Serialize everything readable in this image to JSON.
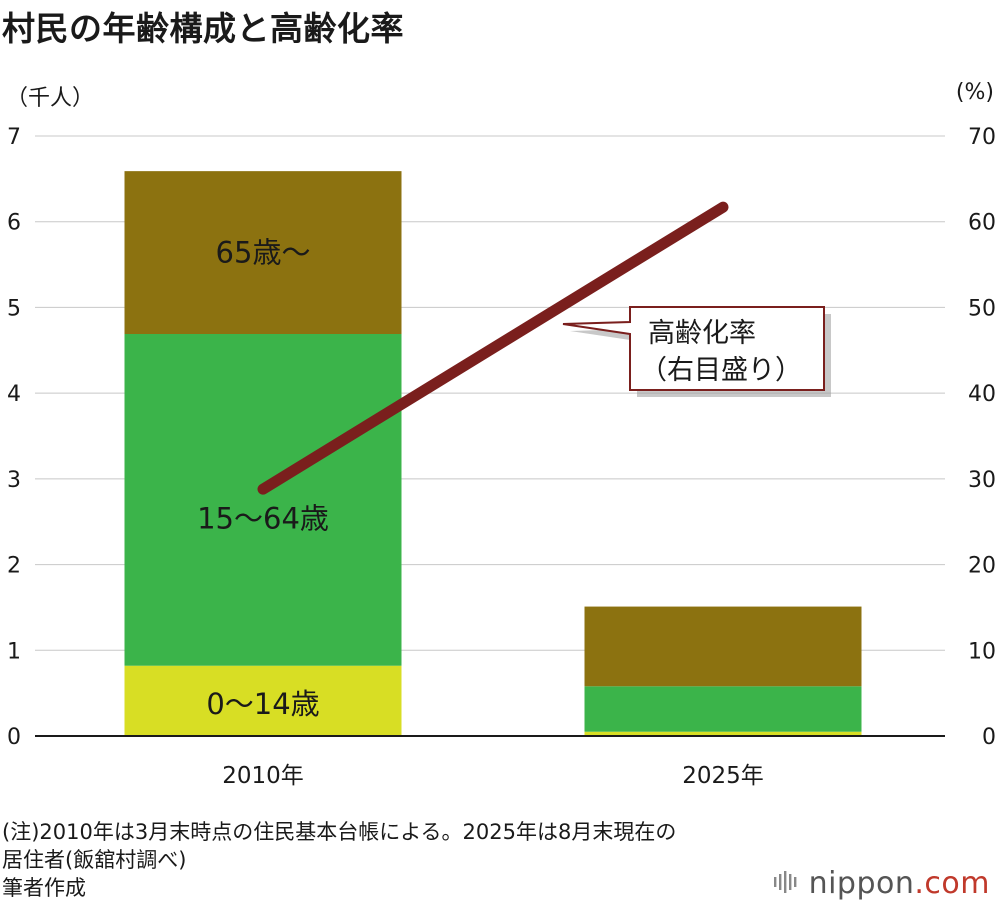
{
  "title": "村民の年齢構成と高齢化率",
  "left_unit": "（千人）",
  "right_unit": "(%)",
  "colors": {
    "age_0_14": "#d8de24",
    "age_15_64": "#3bb44a",
    "age_65_plus": "#8c7210",
    "line": "#7a1f1d",
    "grid": "#c8c8c8",
    "axis": "#1a1a1a"
  },
  "chart_data": {
    "type": "bar",
    "stacked": true,
    "categories": [
      "2010年",
      "2025年"
    ],
    "series": [
      {
        "name": "0〜14歳",
        "values": [
          0.82,
          0.05
        ]
      },
      {
        "name": "15〜64歳",
        "values": [
          3.87,
          0.53
        ]
      },
      {
        "name": "65歳〜",
        "values": [
          1.9,
          0.93
        ]
      }
    ],
    "line_series": {
      "name": "高齢化率",
      "axis": "right",
      "values": [
        28.8,
        61.7
      ]
    },
    "y_left": {
      "min": 0,
      "max": 7,
      "ticks": [
        "0",
        "1",
        "2",
        "3",
        "4",
        "5",
        "6",
        "7"
      ]
    },
    "y_right": {
      "min": 0,
      "max": 70,
      "ticks": [
        "0",
        "10",
        "20",
        "30",
        "40",
        "50",
        "60",
        "70"
      ]
    },
    "grid": true,
    "annotation": {
      "line1": "高齢化率",
      "line2": "（右目盛り）"
    }
  },
  "notes": [
    "(注)2010年は3月末時点の住民基本台帳による。2025年は8月末現在の",
    "居住者(飯舘村調べ)",
    "筆者作成"
  ],
  "logo": {
    "name": "nippon",
    "domain": ".com"
  }
}
